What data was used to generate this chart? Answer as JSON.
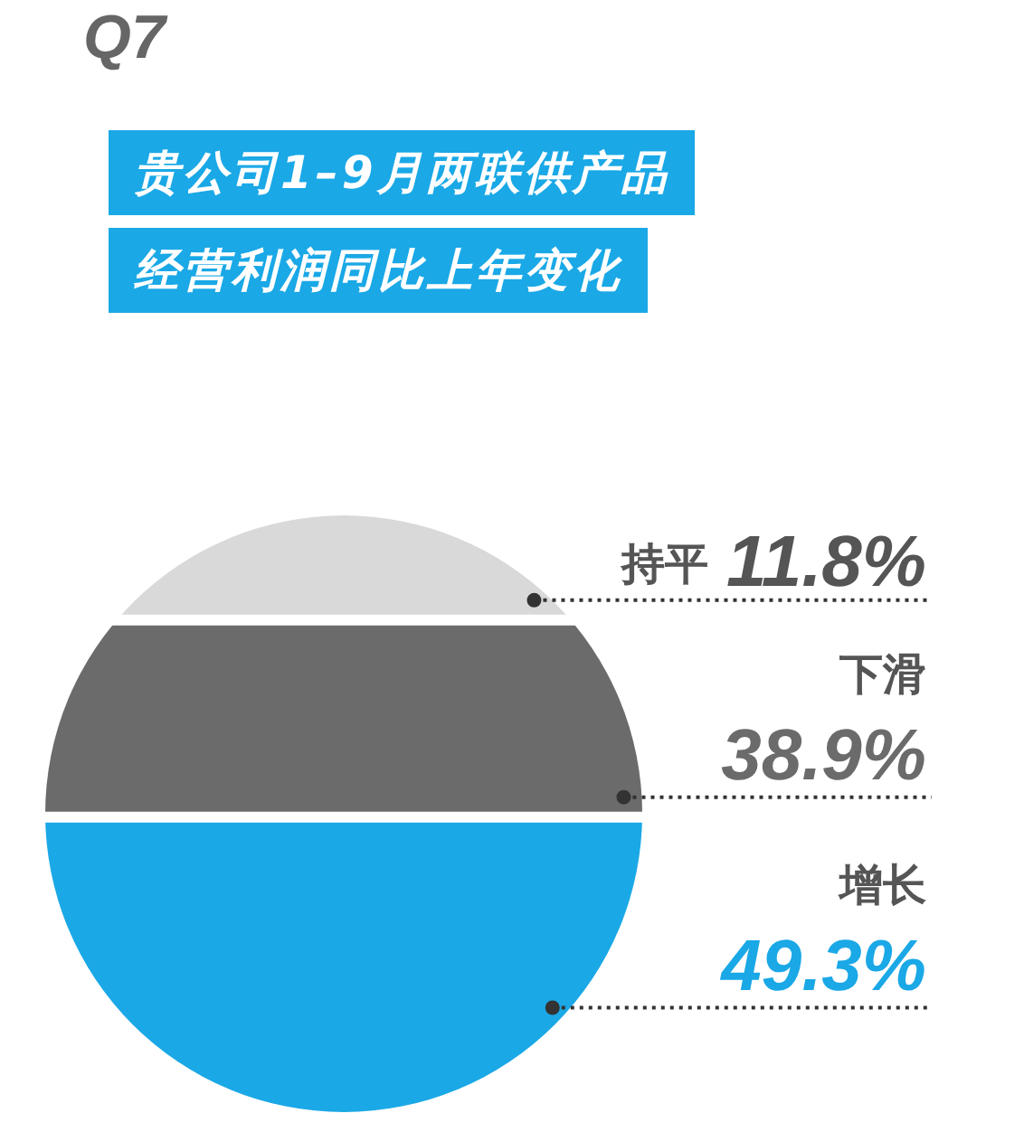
{
  "chart_data": {
    "type": "other",
    "title": "Q7",
    "subtitle": "贵公司1–9月两联供产品经营利润同比上年变化",
    "categories": [
      "持平",
      "下滑",
      "增长"
    ],
    "values": [
      11.8,
      38.9,
      49.3
    ],
    "colors": [
      "#d9d9d9",
      "#6b6b6b",
      "#1aa8e6"
    ],
    "value_labels": [
      "11.8%",
      "38.9%",
      "49.3%"
    ]
  }
}
